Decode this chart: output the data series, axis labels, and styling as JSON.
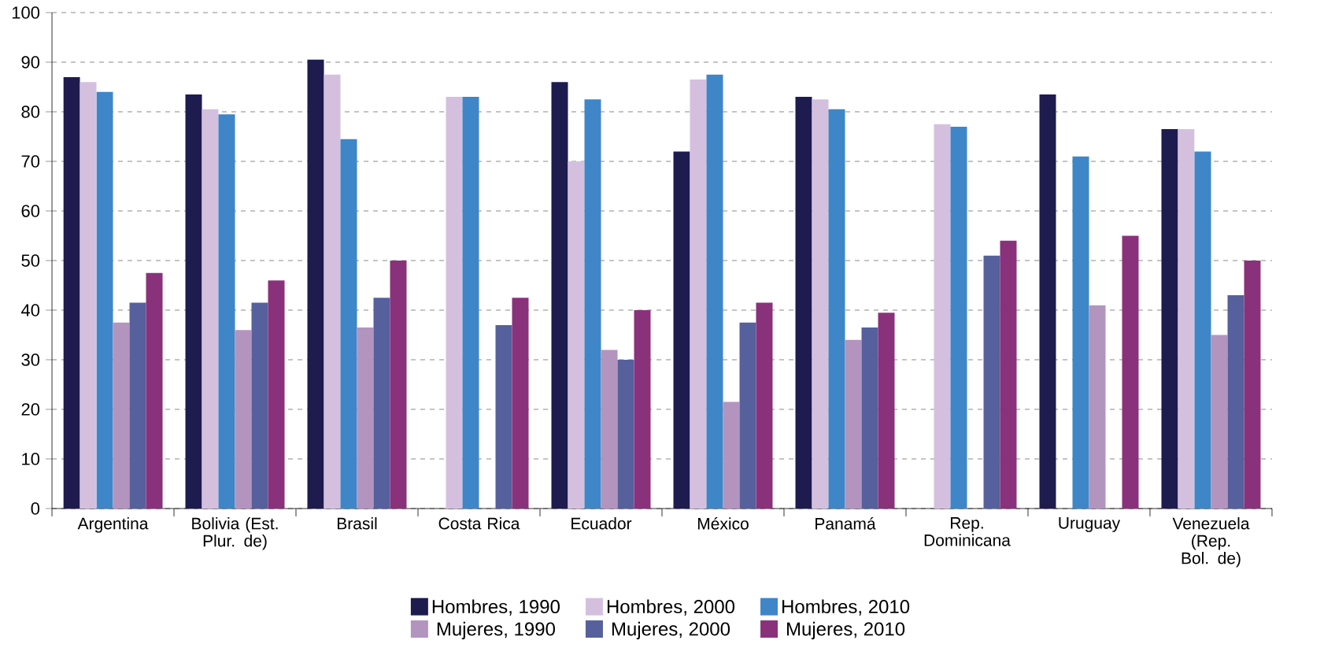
{
  "chart_data": {
    "type": "bar",
    "categories": [
      "Argentina",
      "Bolivia (Est. Plur. de)",
      "Brasil",
      "Costa Rica",
      "Ecuador",
      "México",
      "Panamá",
      "Rep. Dominicana",
      "Uruguay",
      "Venezuela (Rep. Bol. de)"
    ],
    "series": [
      {
        "name": "Hombres, 1990",
        "color": "#1e1b4f",
        "values": [
          87,
          83.5,
          90.5,
          null,
          86,
          72,
          83,
          null,
          83.5,
          76.5
        ]
      },
      {
        "name": "Hombres, 2000",
        "color": "#d4c0de",
        "values": [
          86,
          80.5,
          87.5,
          83,
          70,
          86.5,
          82.5,
          77.5,
          null,
          76.5
        ]
      },
      {
        "name": "Hombres, 2010",
        "color": "#3e86c8",
        "values": [
          84,
          79.5,
          74.5,
          83,
          82.5,
          87.5,
          80.5,
          77,
          71,
          72
        ]
      },
      {
        "name": "Mujeres, 1990",
        "color": "#b294bf",
        "values": [
          37.5,
          36,
          36.5,
          null,
          32,
          21.5,
          34,
          null,
          41,
          35
        ]
      },
      {
        "name": "Mujeres, 2000",
        "color": "#56609c",
        "values": [
          41.5,
          41.5,
          42.5,
          37,
          30,
          37.5,
          36.5,
          51,
          null,
          43
        ]
      },
      {
        "name": "Mujeres, 2010",
        "color": "#8a317c",
        "values": [
          47.5,
          46,
          50,
          42.5,
          40,
          41.5,
          39.5,
          54,
          55,
          50
        ]
      }
    ],
    "ylim": [
      0,
      100
    ],
    "yticks": [
      0,
      10,
      20,
      30,
      40,
      50,
      60,
      70,
      80,
      90,
      100
    ],
    "grid": "y",
    "legend": "bottom"
  }
}
